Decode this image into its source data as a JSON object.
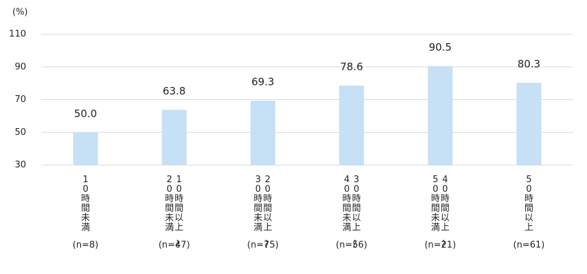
{
  "chart_data": {
    "type": "bar",
    "unit_label": "(%)",
    "categories": [
      "10時間未満",
      "10時間以上～20時間未満",
      "20時間以上～30時間未満",
      "30時間以上～40時間未満",
      "40時間以上～50時間未満",
      "50時間以上"
    ],
    "n_labels": [
      "(n=8)",
      "(n=47)",
      "(n=75)",
      "(n=56)",
      "(n=21)",
      "(n=61)"
    ],
    "values": [
      50,
      63.8,
      69.3,
      78.6,
      90.5,
      80.3
    ],
    "value_labels": [
      "50.0",
      "63.8",
      "69.3",
      "78.6",
      "90.5",
      "80.3"
    ],
    "color": "#c6e0f5",
    "ylim": [
      30,
      110
    ],
    "yticks": [
      30,
      50,
      70,
      90,
      110
    ],
    "grid": true
  }
}
